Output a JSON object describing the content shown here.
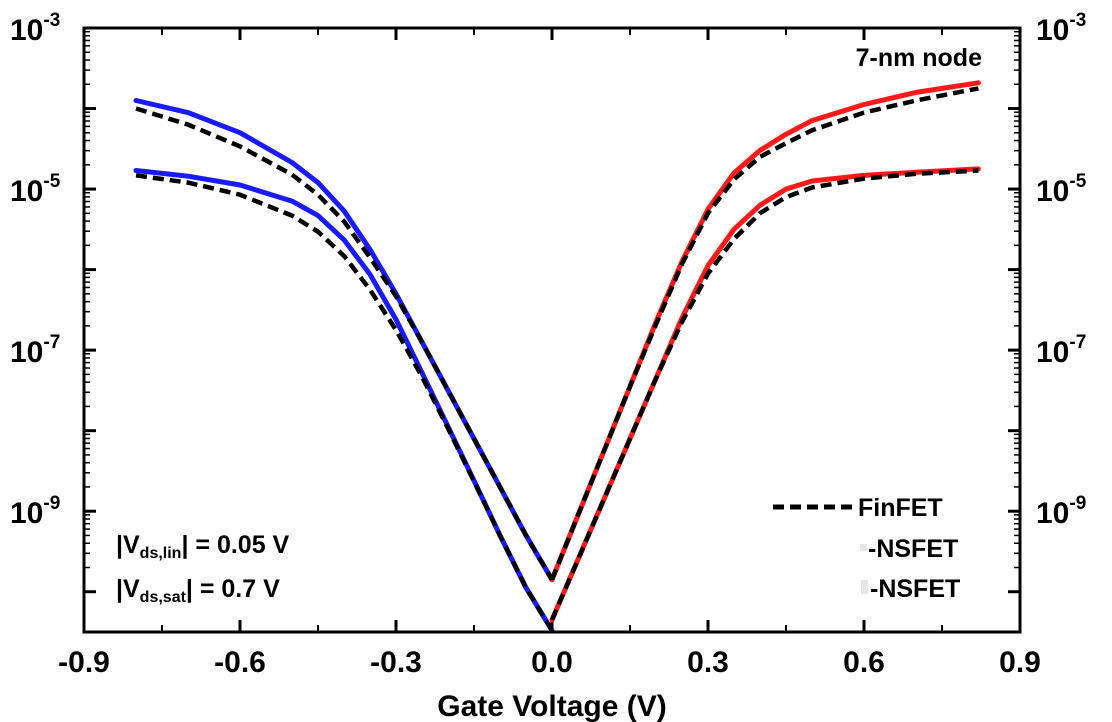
{
  "chart_data": {
    "type": "line",
    "xlabel": "Gate Voltage (V)",
    "ylabel": "",
    "xlim": [
      -0.9,
      0.9
    ],
    "ylim_log10": [
      -10.5,
      -3
    ],
    "y_scale": "log",
    "x_ticks": [
      "-0.9",
      "-0.6",
      "-0.3",
      "0.0",
      "0.3",
      "0.6",
      "0.9"
    ],
    "y_ticks": [
      {
        "base": "10",
        "exp": "-3"
      },
      {
        "base": "10",
        "exp": "-5"
      },
      {
        "base": "10",
        "exp": "-7"
      },
      {
        "base": "10",
        "exp": "-9"
      }
    ],
    "annotation_node": "7-nm node",
    "annotation_vds_lin": {
      "pre": "|V",
      "sub": "ds,lin",
      "post": "| = 0.05 V"
    },
    "annotation_vds_sat": {
      "pre": "|V",
      "sub": "ds,sat",
      "post": "| = 0.7 V"
    },
    "legend": [
      {
        "label": "FinFET",
        "style": "dashed",
        "color": "#000000"
      },
      {
        "label": "-NSFET",
        "style": "solid",
        "color": "#1a1aff"
      },
      {
        "label": "-NSFET",
        "style": "solid",
        "color": "#ff1a1a"
      }
    ],
    "colors": {
      "nsfet_p": "#1a1aff",
      "nsfet_n": "#ff1a1a",
      "finfet": "#000000"
    },
    "series": [
      {
        "group": "p-NSFET sat",
        "style": "solid",
        "color": "#1a1aff",
        "x": [
          -0.8,
          -0.7,
          -0.6,
          -0.5,
          -0.45,
          -0.4,
          -0.35,
          -0.3,
          -0.25,
          -0.2,
          -0.15,
          -0.1,
          -0.05,
          0.0
        ],
        "log10_y": [
          -3.9,
          -4.05,
          -4.3,
          -4.67,
          -4.92,
          -5.27,
          -5.75,
          -6.3,
          -6.9,
          -7.5,
          -8.1,
          -8.7,
          -9.3,
          -9.85
        ]
      },
      {
        "group": "p-NSFET lin",
        "style": "solid",
        "color": "#1a1aff",
        "x": [
          -0.8,
          -0.7,
          -0.6,
          -0.5,
          -0.45,
          -0.4,
          -0.35,
          -0.3,
          -0.25,
          -0.2,
          -0.15,
          -0.1,
          -0.05,
          0.0
        ],
        "log10_y": [
          -4.77,
          -4.84,
          -4.95,
          -5.15,
          -5.33,
          -5.63,
          -6.06,
          -6.62,
          -7.28,
          -7.95,
          -8.62,
          -9.3,
          -9.95,
          -10.48
        ]
      },
      {
        "group": "FinFET p sat",
        "style": "dashed",
        "color": "#000000",
        "x": [
          -0.8,
          -0.7,
          -0.6,
          -0.5,
          -0.45,
          -0.4,
          -0.35,
          -0.3,
          -0.25,
          -0.2,
          -0.15,
          -0.1,
          -0.05,
          0.0
        ],
        "log10_y": [
          -4.0,
          -4.2,
          -4.47,
          -4.82,
          -5.07,
          -5.4,
          -5.85,
          -6.33,
          -6.9,
          -7.5,
          -8.1,
          -8.7,
          -9.3,
          -9.85
        ]
      },
      {
        "group": "FinFET p lin",
        "style": "dashed",
        "color": "#000000",
        "x": [
          -0.8,
          -0.7,
          -0.6,
          -0.5,
          -0.45,
          -0.4,
          -0.35,
          -0.3,
          -0.25,
          -0.2,
          -0.15,
          -0.1,
          -0.05,
          0.0
        ],
        "log10_y": [
          -4.83,
          -4.92,
          -5.07,
          -5.33,
          -5.53,
          -5.83,
          -6.25,
          -6.75,
          -7.33,
          -7.97,
          -8.63,
          -9.3,
          -9.95,
          -10.48
        ]
      },
      {
        "group": "n-NSFET sat",
        "style": "solid",
        "color": "#ff1a1a",
        "x": [
          0.0,
          0.05,
          0.1,
          0.15,
          0.2,
          0.25,
          0.3,
          0.35,
          0.4,
          0.45,
          0.5,
          0.6,
          0.7,
          0.82
        ],
        "log10_y": [
          -9.85,
          -9.05,
          -8.25,
          -7.45,
          -6.65,
          -5.9,
          -5.25,
          -4.8,
          -4.52,
          -4.32,
          -4.15,
          -3.95,
          -3.8,
          -3.68
        ]
      },
      {
        "group": "n-NSFET lin",
        "style": "solid",
        "color": "#ff1a1a",
        "x": [
          0.0,
          0.05,
          0.1,
          0.15,
          0.2,
          0.25,
          0.3,
          0.35,
          0.4,
          0.45,
          0.5,
          0.6,
          0.7,
          0.82
        ],
        "log10_y": [
          -10.35,
          -9.6,
          -8.85,
          -8.1,
          -7.35,
          -6.6,
          -5.95,
          -5.5,
          -5.2,
          -5.0,
          -4.9,
          -4.83,
          -4.79,
          -4.75
        ]
      },
      {
        "group": "FinFET n sat",
        "style": "dashed",
        "color": "#000000",
        "x": [
          0.0,
          0.05,
          0.1,
          0.15,
          0.2,
          0.25,
          0.3,
          0.35,
          0.4,
          0.45,
          0.5,
          0.6,
          0.7,
          0.82
        ],
        "log10_y": [
          -9.85,
          -9.05,
          -8.25,
          -7.45,
          -6.68,
          -5.93,
          -5.3,
          -4.88,
          -4.6,
          -4.43,
          -4.27,
          -4.05,
          -3.9,
          -3.75
        ]
      },
      {
        "group": "FinFET n lin",
        "style": "dashed",
        "color": "#000000",
        "x": [
          0.0,
          0.05,
          0.1,
          0.15,
          0.2,
          0.25,
          0.3,
          0.35,
          0.4,
          0.45,
          0.5,
          0.6,
          0.7,
          0.82
        ],
        "log10_y": [
          -10.35,
          -9.6,
          -8.85,
          -8.1,
          -7.35,
          -6.65,
          -6.05,
          -5.62,
          -5.3,
          -5.1,
          -4.98,
          -4.87,
          -4.81,
          -4.77
        ]
      }
    ]
  }
}
